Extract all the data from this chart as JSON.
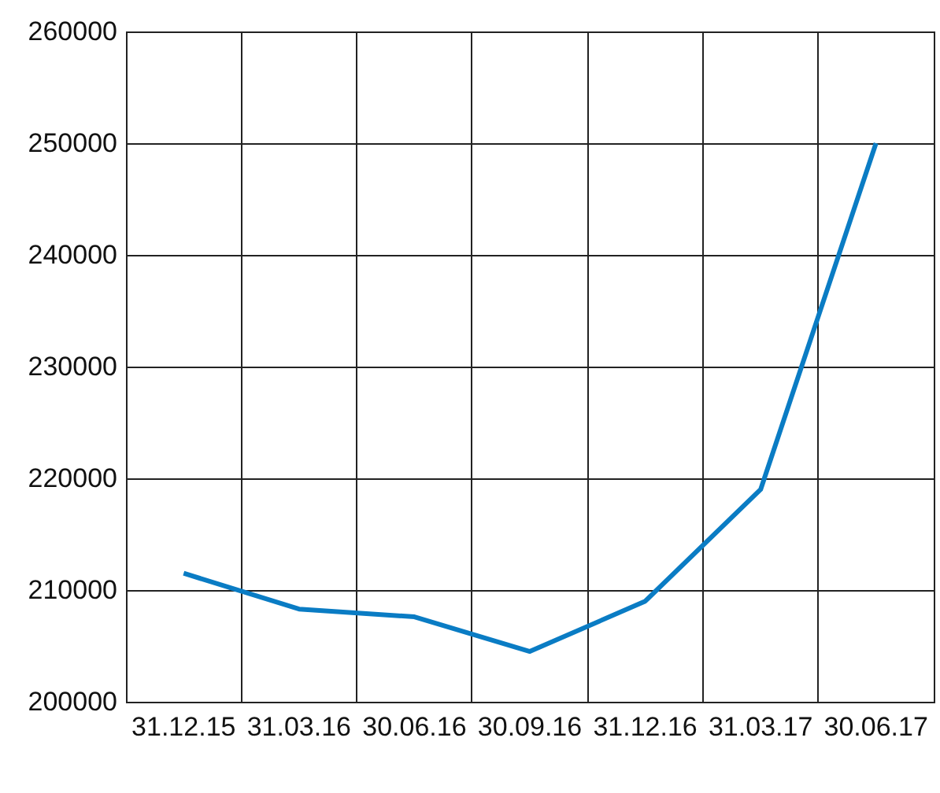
{
  "chart_data": {
    "type": "line",
    "categories": [
      "31.12.15",
      "31.03.16",
      "30.06.16",
      "30.09.16",
      "31.12.16",
      "31.03.17",
      "30.06.17"
    ],
    "series": [
      {
        "color": "#0a7cc4",
        "values": [
          211500,
          208300,
          207600,
          204500,
          209000,
          219000,
          250000
        ]
      }
    ],
    "ylim": [
      200000,
      260000
    ],
    "yticks": [
      200000,
      210000,
      220000,
      230000,
      240000,
      250000,
      260000
    ],
    "grid": true,
    "marker": "none",
    "line_style": "solid"
  }
}
